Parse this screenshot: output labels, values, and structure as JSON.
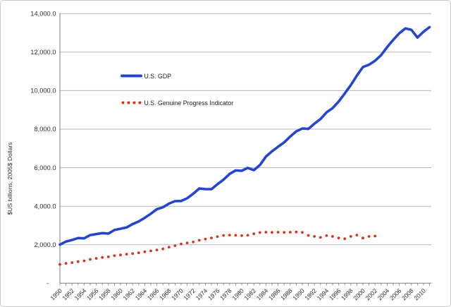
{
  "colors": {
    "gdp_line": "#2544d0",
    "gpi_dots": "#d5341b",
    "gridline": "#b3b6b8",
    "axis": "#7f7f7f",
    "tick_text": "#2e2e2e",
    "frame_border": "#c6c6c6",
    "background": "#ffffff"
  },
  "legend": {
    "gdp_label": "U.S. GDP",
    "gpi_label": "U.S. Genuine Progress Indicator"
  },
  "chart_data": {
    "type": "line",
    "title": "",
    "xlabel": "",
    "ylabel": "$US billions, 2005$ Dollars",
    "ylim": [
      0,
      14000
    ],
    "xlim": [
      1950,
      2011
    ],
    "grid": "horizontal gridlines every 2000",
    "legend_position": "inside upper-left, no border",
    "y_tick_values": [
      0,
      2000,
      4000,
      6000,
      8000,
      10000,
      12000,
      14000
    ],
    "y_tick_labels": [
      "-",
      "2,000.0",
      "4,000.0",
      "6,000.0",
      "8,000.0",
      "10,000.0",
      "12,000.0",
      "14,000.0"
    ],
    "x_tick_step_years": 1,
    "x_tick_labels": [
      "1950",
      "1952",
      "1954",
      "1956",
      "1958",
      "1960",
      "1962",
      "1964",
      "1966",
      "1968",
      "1970",
      "1972",
      "1974",
      "1976",
      "1978",
      "1980",
      "1982",
      "1984",
      "1986",
      "1988",
      "1990",
      "1992",
      "1994",
      "1996",
      "1998",
      "2000",
      "2002",
      "2004",
      "2006",
      "2008",
      "2010"
    ],
    "series": [
      {
        "name": "U.S. GDP",
        "style": "solid",
        "color": "#2544d0",
        "x": [
          1950,
          1951,
          1952,
          1953,
          1954,
          1955,
          1956,
          1957,
          1958,
          1959,
          1960,
          1961,
          1962,
          1963,
          1964,
          1965,
          1966,
          1967,
          1968,
          1969,
          1970,
          1971,
          1972,
          1973,
          1974,
          1975,
          1976,
          1977,
          1978,
          1979,
          1980,
          1981,
          1982,
          1983,
          1984,
          1985,
          1986,
          1987,
          1988,
          1989,
          1990,
          1991,
          1992,
          1993,
          1994,
          1995,
          1996,
          1997,
          1998,
          1999,
          2000,
          2001,
          2002,
          2003,
          2004,
          2005,
          2006,
          2007,
          2008,
          2009,
          2010,
          2011
        ],
        "values": [
          2006,
          2161,
          2244,
          2347,
          2332,
          2500,
          2549,
          2601,
          2577,
          2762,
          2830,
          2897,
          3072,
          3207,
          3392,
          3610,
          3845,
          3943,
          4133,
          4262,
          4270,
          4413,
          4648,
          4917,
          4890,
          4880,
          5141,
          5378,
          5678,
          5855,
          5839,
          5987,
          5871,
          6136,
          6577,
          6849,
          7087,
          7313,
          7614,
          7886,
          8034,
          8015,
          8287,
          8523,
          8871,
          9094,
          9434,
          9854,
          10284,
          10780,
          11226,
          11347,
          11553,
          11841,
          12264,
          12638,
          12976,
          13229,
          13162,
          12758,
          13063,
          13299
        ]
      },
      {
        "name": "U.S. Genuine Progress Indicator",
        "style": "dotted",
        "color": "#d5341b",
        "x": [
          1950,
          1951,
          1952,
          1953,
          1954,
          1955,
          1956,
          1957,
          1958,
          1959,
          1960,
          1961,
          1962,
          1963,
          1964,
          1965,
          1966,
          1967,
          1968,
          1969,
          1970,
          1971,
          1972,
          1973,
          1974,
          1975,
          1976,
          1977,
          1978,
          1979,
          1980,
          1981,
          1982,
          1983,
          1984,
          1985,
          1986,
          1987,
          1988,
          1989,
          1990,
          1991,
          1992,
          1993,
          1994,
          1995,
          1996,
          1997,
          1998,
          1999,
          2000,
          2001,
          2002
        ],
        "values": [
          980,
          1030,
          1070,
          1120,
          1160,
          1240,
          1290,
          1340,
          1370,
          1430,
          1470,
          1510,
          1540,
          1580,
          1630,
          1680,
          1730,
          1780,
          1870,
          1950,
          2040,
          2090,
          2140,
          2230,
          2290,
          2350,
          2420,
          2480,
          2500,
          2490,
          2470,
          2490,
          2570,
          2630,
          2650,
          2640,
          2650,
          2640,
          2650,
          2660,
          2640,
          2480,
          2430,
          2380,
          2470,
          2430,
          2350,
          2310,
          2430,
          2500,
          2350,
          2430,
          2450
        ]
      }
    ]
  }
}
